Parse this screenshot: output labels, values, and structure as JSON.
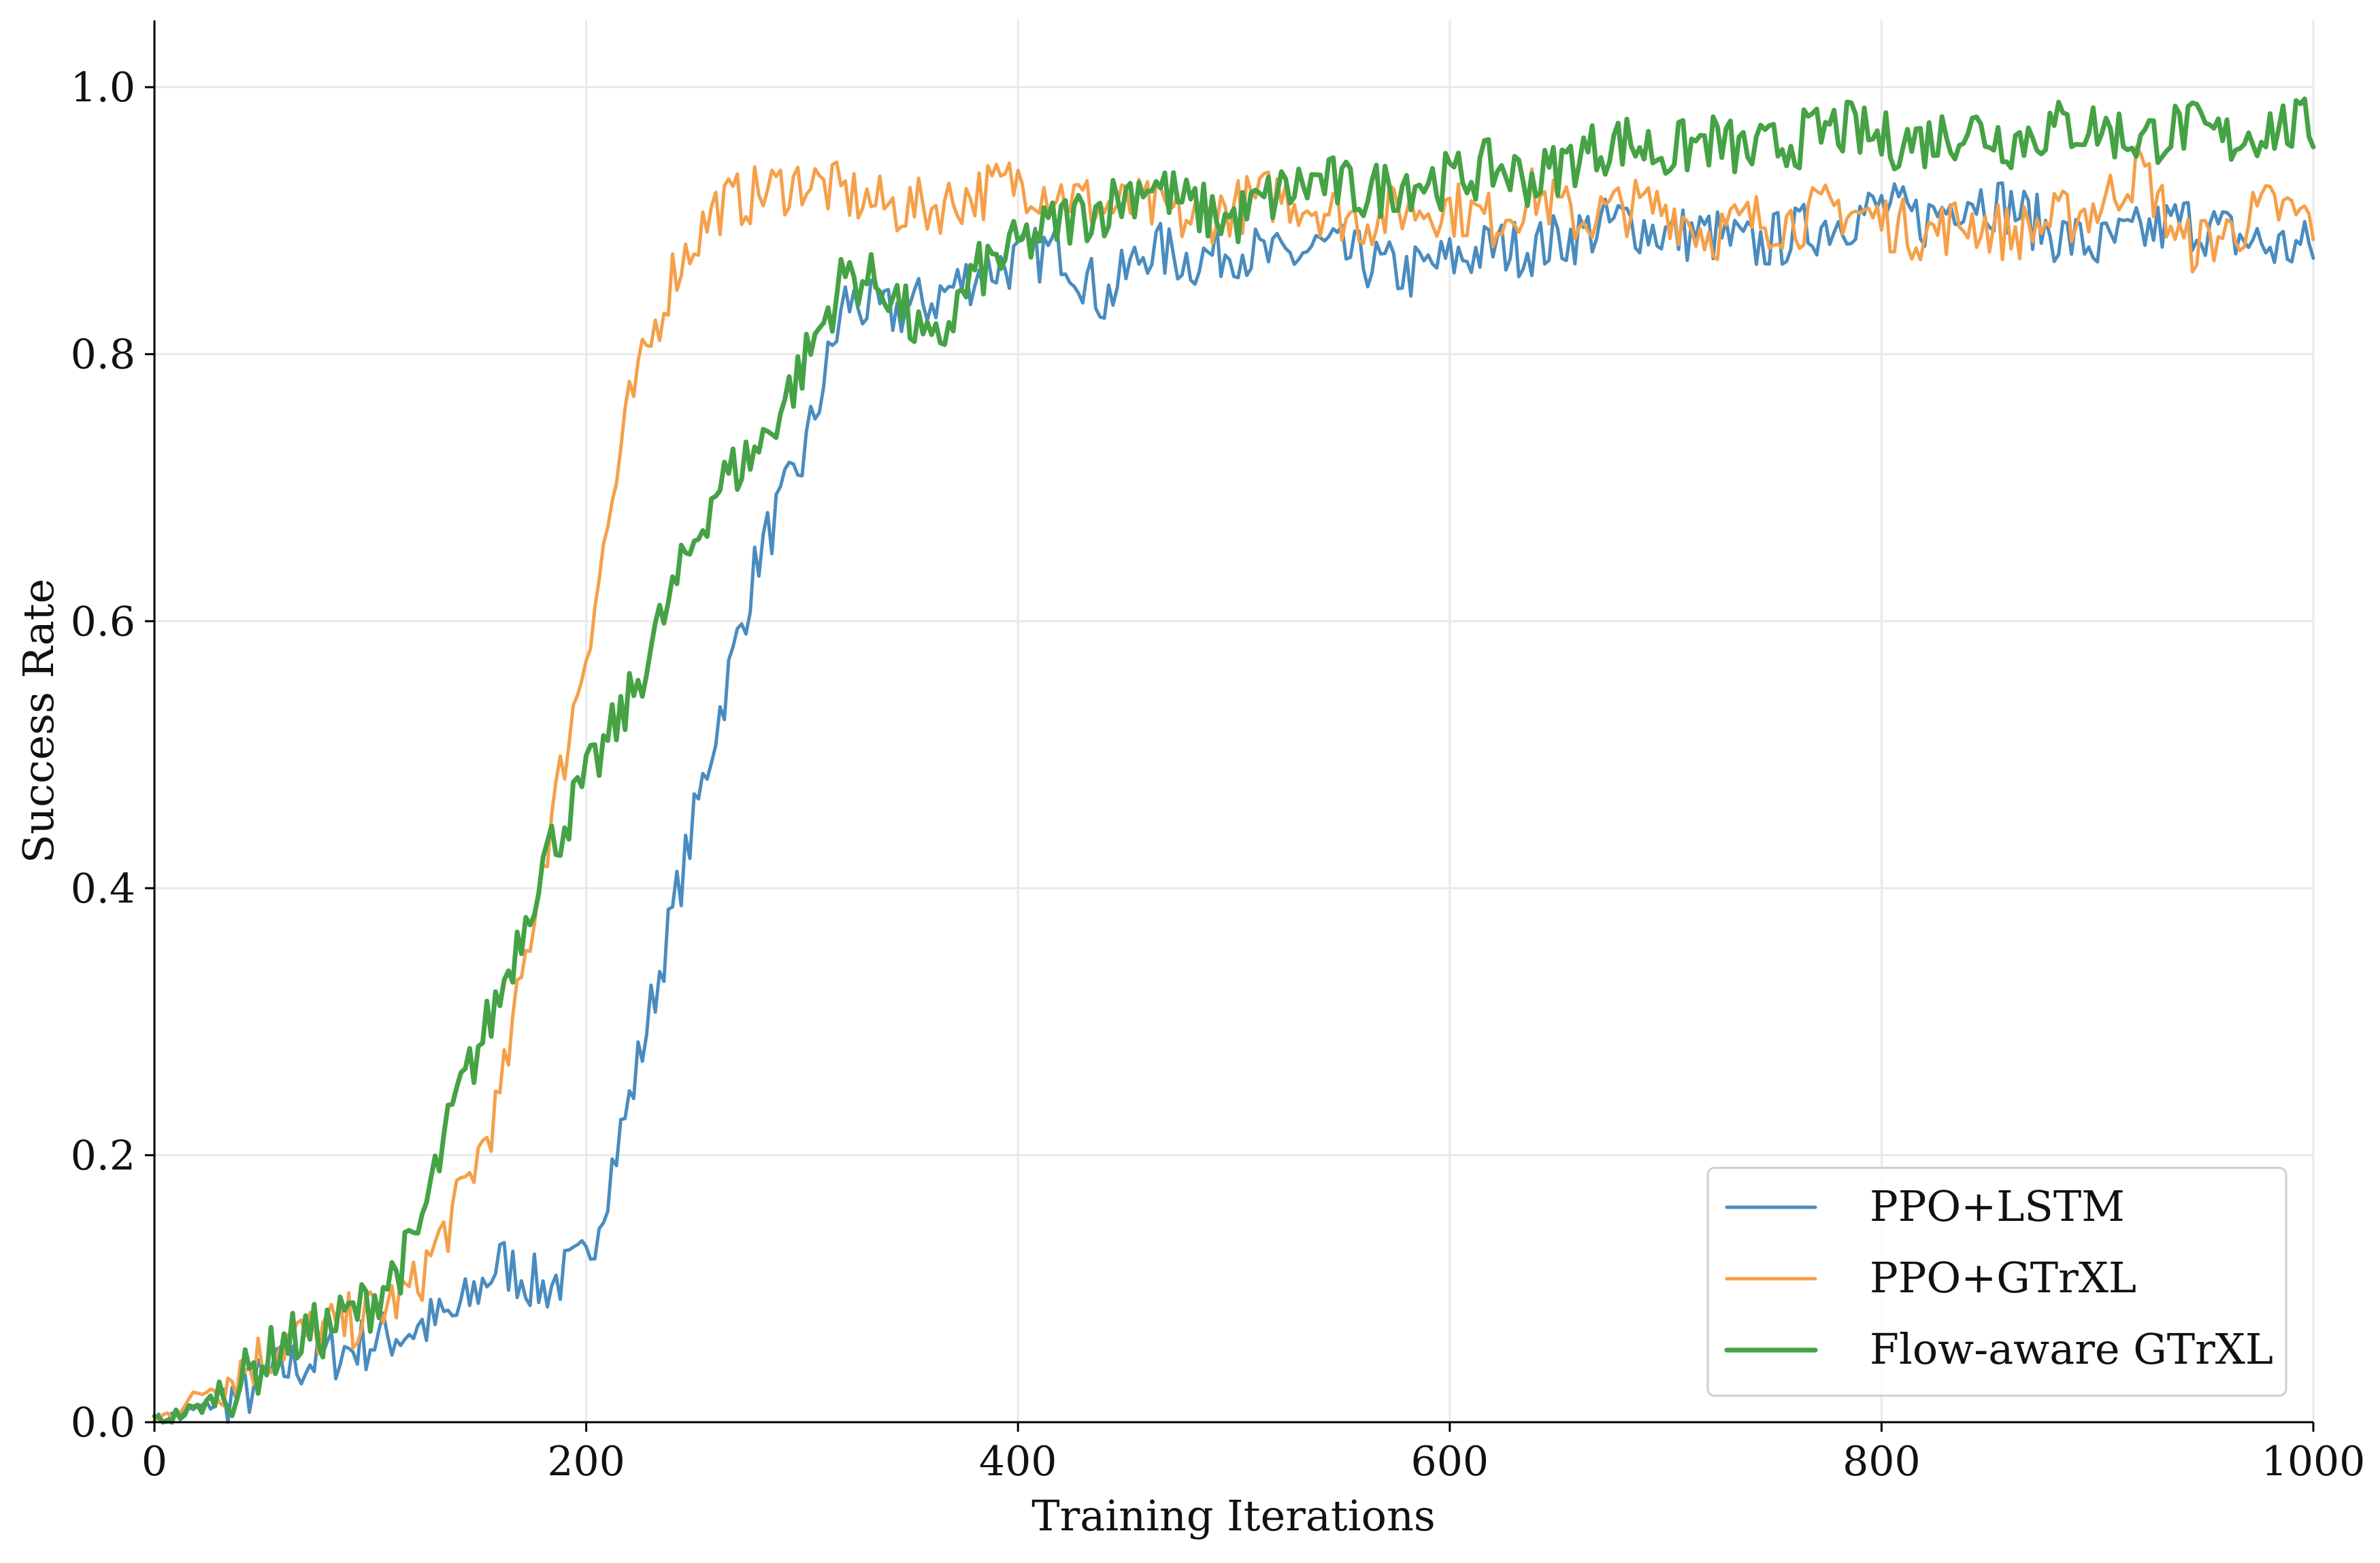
{
  "chart_data": {
    "type": "line",
    "title": "",
    "xlabel": "Training Iterations",
    "ylabel": "Success Rate",
    "xlim": [
      0,
      1000
    ],
    "ylim": [
      0,
      1.05
    ],
    "xticks": [
      0,
      200,
      400,
      600,
      800,
      1000
    ],
    "yticks": [
      0.0,
      0.2,
      0.4,
      0.6,
      0.8,
      1.0
    ],
    "xtick_labels": [
      "0",
      "200",
      "400",
      "600",
      "800",
      "1000"
    ],
    "ytick_labels": [
      "0.0",
      "0.2",
      "0.4",
      "0.6",
      "0.8",
      "1.0"
    ],
    "grid": true,
    "legend_position": "lower-right",
    "x": [
      0,
      20,
      40,
      60,
      80,
      100,
      120,
      140,
      160,
      180,
      200,
      220,
      240,
      260,
      280,
      300,
      320,
      340,
      360,
      380,
      400,
      420,
      440,
      460,
      480,
      500,
      520,
      540,
      560,
      580,
      600,
      620,
      640,
      660,
      680,
      700,
      720,
      740,
      760,
      780,
      800,
      820,
      840,
      860,
      880,
      900,
      920,
      940,
      960,
      980,
      1000
    ],
    "series": [
      {
        "name": "PPO+LSTM",
        "color": "#4a8cbf",
        "values": [
          0.0,
          0.01,
          0.02,
          0.04,
          0.05,
          0.06,
          0.07,
          0.08,
          0.12,
          0.1,
          0.12,
          0.24,
          0.38,
          0.52,
          0.65,
          0.72,
          0.84,
          0.83,
          0.84,
          0.86,
          0.87,
          0.88,
          0.84,
          0.88,
          0.87,
          0.88,
          0.87,
          0.88,
          0.87,
          0.86,
          0.87,
          0.88,
          0.88,
          0.89,
          0.9,
          0.89,
          0.89,
          0.88,
          0.89,
          0.9,
          0.91,
          0.9,
          0.92,
          0.91,
          0.89,
          0.88,
          0.89,
          0.9,
          0.89,
          0.88,
          0.88
        ]
      },
      {
        "name": "PPO+GTrXL",
        "color": "#f5a04a",
        "values": [
          0.0,
          0.02,
          0.04,
          0.06,
          0.07,
          0.08,
          0.1,
          0.16,
          0.24,
          0.42,
          0.58,
          0.76,
          0.86,
          0.91,
          0.92,
          0.93,
          0.92,
          0.91,
          0.91,
          0.92,
          0.93,
          0.92,
          0.91,
          0.91,
          0.9,
          0.91,
          0.92,
          0.91,
          0.9,
          0.91,
          0.91,
          0.9,
          0.92,
          0.9,
          0.91,
          0.91,
          0.89,
          0.9,
          0.9,
          0.91,
          0.9,
          0.89,
          0.9,
          0.89,
          0.9,
          0.91,
          0.94,
          0.88,
          0.89,
          0.91,
          0.9
        ]
      },
      {
        "name": "Flow-aware GTrXL",
        "color": "#45a245",
        "values": [
          0.0,
          0.01,
          0.03,
          0.06,
          0.07,
          0.09,
          0.13,
          0.24,
          0.32,
          0.42,
          0.48,
          0.54,
          0.62,
          0.7,
          0.73,
          0.79,
          0.86,
          0.85,
          0.8,
          0.86,
          0.88,
          0.9,
          0.91,
          0.93,
          0.91,
          0.9,
          0.92,
          0.93,
          0.92,
          0.93,
          0.93,
          0.94,
          0.93,
          0.95,
          0.96,
          0.95,
          0.96,
          0.95,
          0.96,
          0.97,
          0.96,
          0.96,
          0.97,
          0.96,
          0.97,
          0.97,
          0.96,
          0.97,
          0.96,
          0.97,
          0.97
        ]
      }
    ]
  }
}
